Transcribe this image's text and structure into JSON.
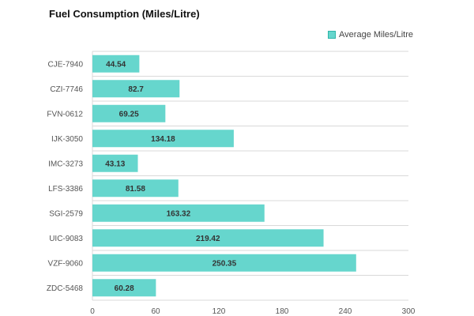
{
  "chart_data": {
    "type": "bar",
    "orientation": "horizontal",
    "title": "Fuel Consumption (Miles/Litre)",
    "categories": [
      "CJE-7940",
      "CZI-7746",
      "FVN-0612",
      "IJK-3050",
      "IMC-3273",
      "LFS-3386",
      "SGI-2579",
      "UIC-9083",
      "VZF-9060",
      "ZDC-5468"
    ],
    "series": [
      {
        "name": "Average Miles/Litre",
        "values": [
          44.54,
          82.7,
          69.25,
          134.18,
          43.13,
          81.58,
          163.32,
          219.42,
          250.35,
          60.28
        ],
        "value_labels": [
          "44.54",
          "82.7",
          "69.25",
          "134.18",
          "43.13",
          "81.58",
          "163.32",
          "219.42",
          "250.35",
          "60.28"
        ]
      }
    ],
    "xlim": [
      0,
      300
    ],
    "x_ticks": [
      0,
      60,
      120,
      180,
      240,
      300
    ],
    "x_tick_labels": [
      "0",
      "60",
      "120",
      "180",
      "240",
      "300"
    ],
    "grid": "horizontal",
    "legend_position": "top-right",
    "colors": {
      "bar": "#66d6cd",
      "grid": "#d9d9d9"
    }
  }
}
